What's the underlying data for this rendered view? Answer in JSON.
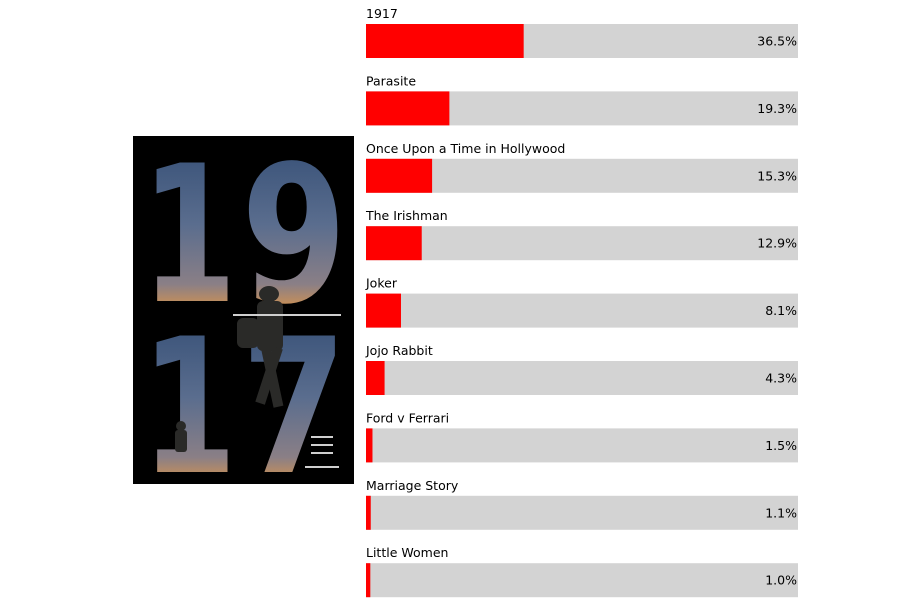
{
  "poster": {
    "title_digits": [
      "1",
      "9",
      "1",
      "7"
    ],
    "colors": {
      "background": "#000000",
      "sky_top": "#2f4a72",
      "sky_mid": "#5a6d8e",
      "sunset": "#f09a3a"
    }
  },
  "chart_data": {
    "type": "bar",
    "orientation": "horizontal",
    "value_format": "percent",
    "xlim": [
      0,
      100
    ],
    "colors": {
      "bar": "#ff0000",
      "track": "#d3d3d3"
    },
    "categories": [
      "1917",
      "Parasite",
      "Once Upon a Time in Hollywood",
      "The Irishman",
      "Joker",
      "Jojo Rabbit",
      "Ford v Ferrari",
      "Marriage Story",
      "Little Women"
    ],
    "values": [
      36.5,
      19.3,
      15.3,
      12.9,
      8.1,
      4.3,
      1.5,
      1.1,
      1.0
    ],
    "value_labels": [
      "36.5%",
      "19.3%",
      "15.3%",
      "12.9%",
      "8.1%",
      "4.3%",
      "1.5%",
      "1.1%",
      "1.0%"
    ]
  }
}
